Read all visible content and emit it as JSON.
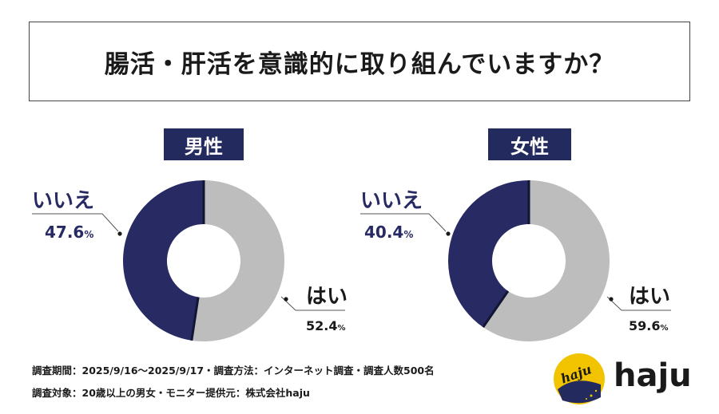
{
  "title": "腸活・肝活を意識的に取り組んでいますか？",
  "chart_data": [
    {
      "type": "pie",
      "donut": true,
      "title": "男性",
      "slices": [
        {
          "label": "はい",
          "value": 52.4,
          "display": "52.4",
          "color": "#bdbdbd"
        },
        {
          "label": "いいえ",
          "value": 47.6,
          "display": "47.6",
          "color": "#272a63"
        }
      ],
      "unit": "%"
    },
    {
      "type": "pie",
      "donut": true,
      "title": "女性",
      "slices": [
        {
          "label": "はい",
          "value": 59.6,
          "display": "59.6",
          "color": "#bdbdbd"
        },
        {
          "label": "いいえ",
          "value": 40.4,
          "display": "40.4",
          "color": "#272a63"
        }
      ],
      "unit": "%"
    }
  ],
  "notes": {
    "line1": "調査期間：2025/9/16～2025/9/17・調査方法：インターネット調査・調査人数500名",
    "line2": "調査対象：20歳以上の男女・モニター提供元：株式会社haju"
  },
  "logo": {
    "text": "haju",
    "mark_text": "haju"
  }
}
